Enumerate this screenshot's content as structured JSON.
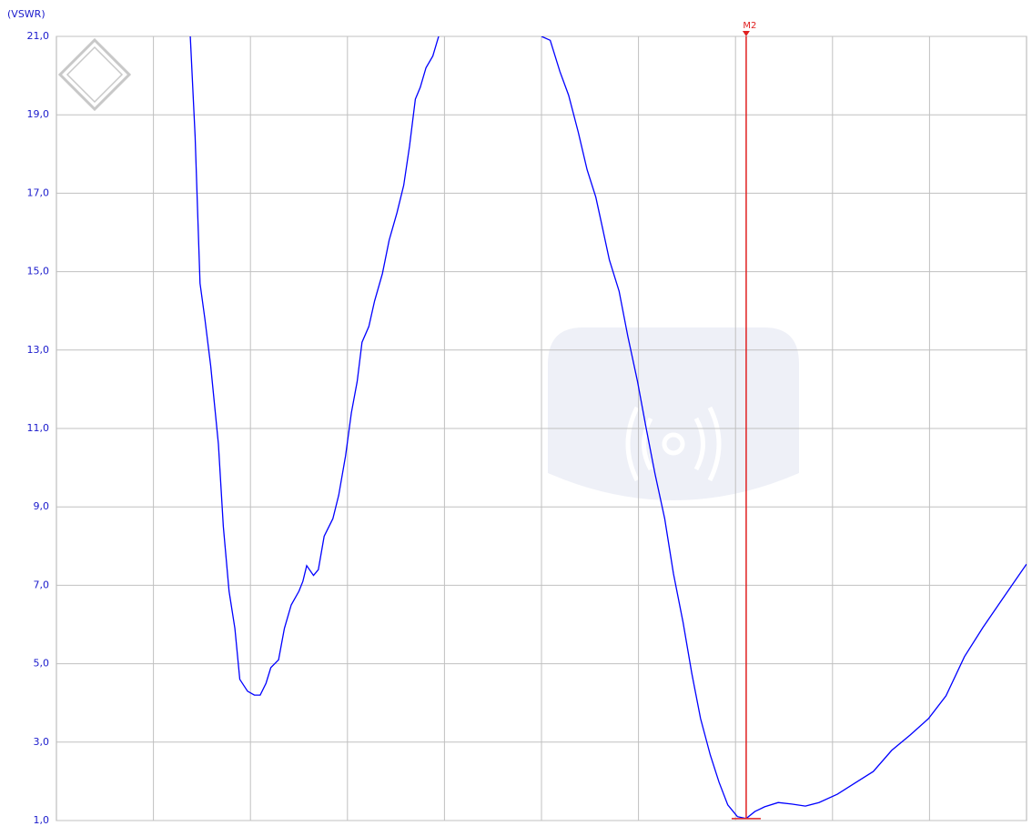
{
  "chart_data": {
    "type": "line",
    "y_label": "(VSWR)",
    "x": [
      1.38,
      1.43,
      1.48,
      1.53,
      1.59,
      1.67,
      1.72,
      1.78,
      1.84,
      1.89,
      1.97,
      2.04,
      2.1,
      2.16,
      2.21,
      2.29,
      2.35,
      2.42,
      2.5,
      2.54,
      2.58,
      2.65,
      2.7,
      2.76,
      2.85,
      2.91,
      2.98,
      3.04,
      3.1,
      3.15,
      3.22,
      3.28,
      3.36,
      3.43,
      3.51,
      3.58,
      3.64,
      3.7,
      3.75,
      3.81,
      3.88,
      3.94,
      4.47,
      5.0,
      5.09,
      5.19,
      5.28,
      5.38,
      5.47,
      5.56,
      5.63,
      5.7,
      5.8,
      5.89,
      5.99,
      6.08,
      6.17,
      6.27,
      6.36,
      6.46,
      6.55,
      6.64,
      6.74,
      6.83,
      6.92,
      7.02,
      7.11,
      7.2,
      7.3,
      7.44,
      7.58,
      7.72,
      7.86,
      8.05,
      8.24,
      8.42,
      8.61,
      8.8,
      8.99,
      9.17,
      9.36,
      9.55,
      9.74,
      10.0
    ],
    "values": [
      21.0,
      18.45,
      14.7,
      13.8,
      12.6,
      10.6,
      8.5,
      6.85,
      5.9,
      4.6,
      4.3,
      4.2,
      4.2,
      4.5,
      4.9,
      5.1,
      5.9,
      6.5,
      6.85,
      7.1,
      7.5,
      7.25,
      7.4,
      8.25,
      8.7,
      9.3,
      10.3,
      11.4,
      12.2,
      13.2,
      13.6,
      14.25,
      14.95,
      15.8,
      16.5,
      17.2,
      18.2,
      19.4,
      19.7,
      20.2,
      20.5,
      21.0,
      null,
      21.0,
      20.9,
      20.1,
      19.5,
      18.55,
      17.6,
      16.9,
      16.1,
      15.3,
      14.5,
      13.35,
      12.2,
      11.0,
      9.85,
      8.7,
      7.3,
      6.05,
      4.75,
      3.6,
      2.67,
      1.98,
      1.4,
      1.1,
      1.05,
      1.23,
      1.35,
      1.46,
      1.42,
      1.37,
      1.46,
      1.67,
      1.97,
      2.25,
      2.79,
      3.18,
      3.6,
      4.18,
      5.18,
      5.92,
      6.61,
      7.54
    ],
    "color": "#0000ff",
    "xlim": [
      0,
      10
    ],
    "xticks": [
      1,
      2,
      3,
      4,
      5,
      6,
      7,
      8,
      9
    ],
    "ylim": [
      1,
      21
    ],
    "yticks": [
      {
        "value": 1,
        "label": "1,0"
      },
      {
        "value": 3,
        "label": "3,0"
      },
      {
        "value": 5,
        "label": "5,0"
      },
      {
        "value": 7,
        "label": "7,0"
      },
      {
        "value": 9,
        "label": "9,0"
      },
      {
        "value": 11,
        "label": "11,0"
      },
      {
        "value": 13,
        "label": "13,0"
      },
      {
        "value": 15,
        "label": "15,0"
      },
      {
        "value": 17,
        "label": "17,0"
      },
      {
        "value": 19,
        "label": "19,0"
      },
      {
        "value": 21,
        "label": "21,0"
      }
    ],
    "grid": true,
    "markers": [
      {
        "name": "M2",
        "x": 7.11,
        "y": 1.05,
        "color": "#e02020"
      }
    ]
  }
}
